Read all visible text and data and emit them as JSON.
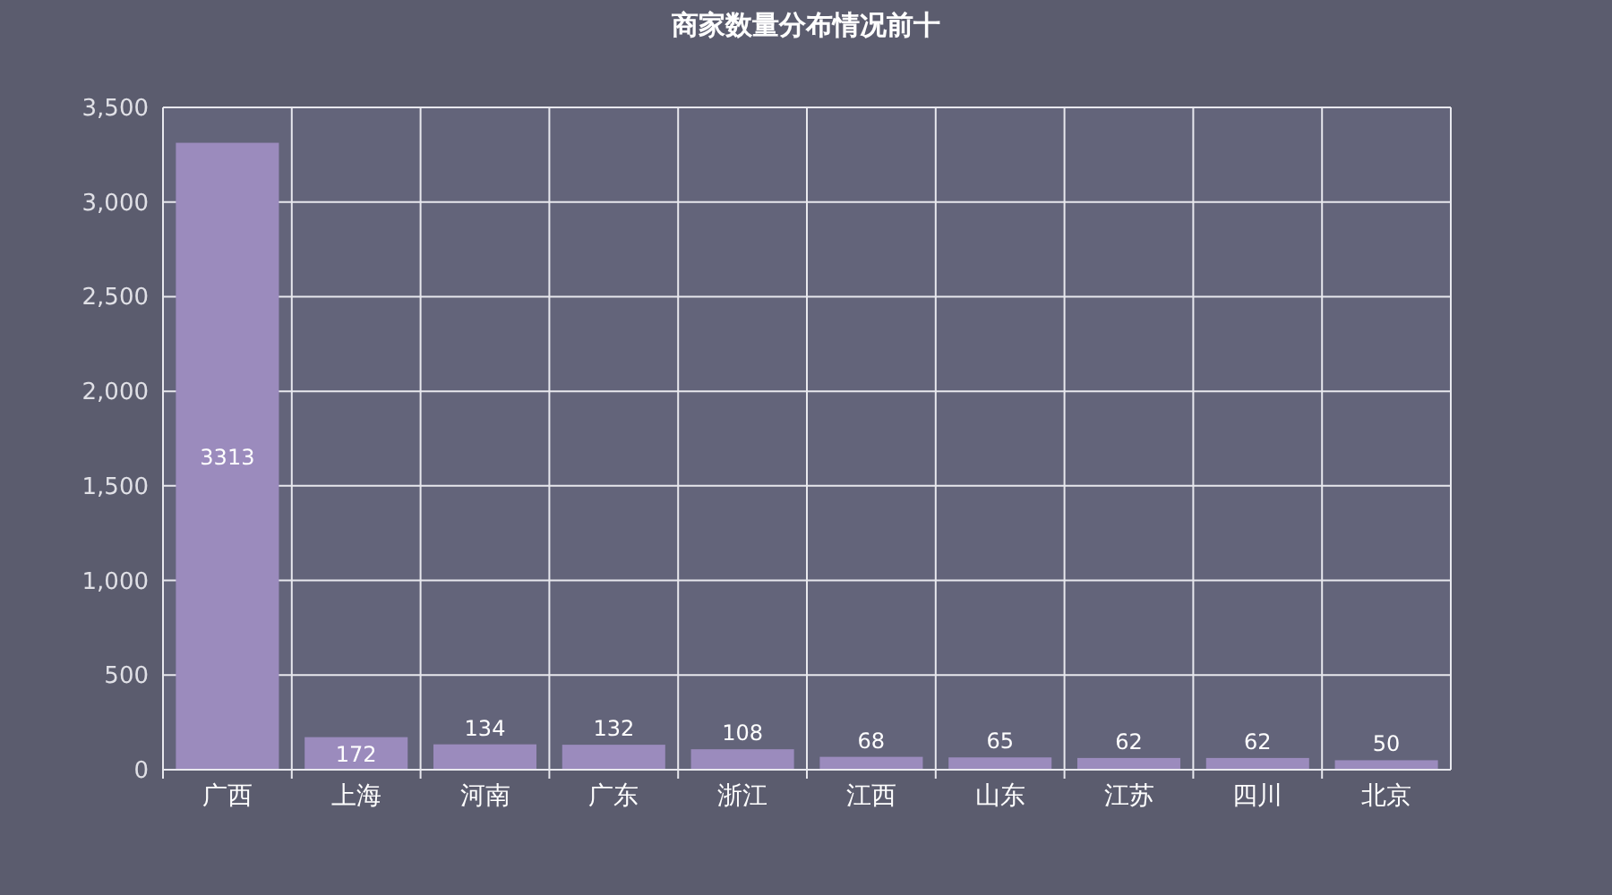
{
  "chart_data": {
    "type": "bar",
    "title": "商家数量分布情况前十",
    "categories": [
      "广西",
      "上海",
      "河南",
      "广东",
      "浙江",
      "江西",
      "山东",
      "江苏",
      "四川",
      "北京"
    ],
    "values": [
      3313,
      172,
      134,
      132,
      108,
      68,
      65,
      62,
      62,
      50
    ],
    "color": "#9b8bbd",
    "ylim": [
      0,
      3500
    ],
    "yticks": [
      0,
      {
        "value": 500,
        "label": "500"
      },
      {
        "value": 1000,
        "label": "1,000"
      },
      {
        "value": 1500,
        "label": "1,500"
      },
      {
        "value": 2000,
        "label": "2,000"
      },
      {
        "value": 2500,
        "label": "2,500"
      },
      {
        "value": 3000,
        "label": "3,000"
      },
      {
        "value": 3500,
        "label": "3,500"
      }
    ],
    "grid": true,
    "data_labels": true
  }
}
